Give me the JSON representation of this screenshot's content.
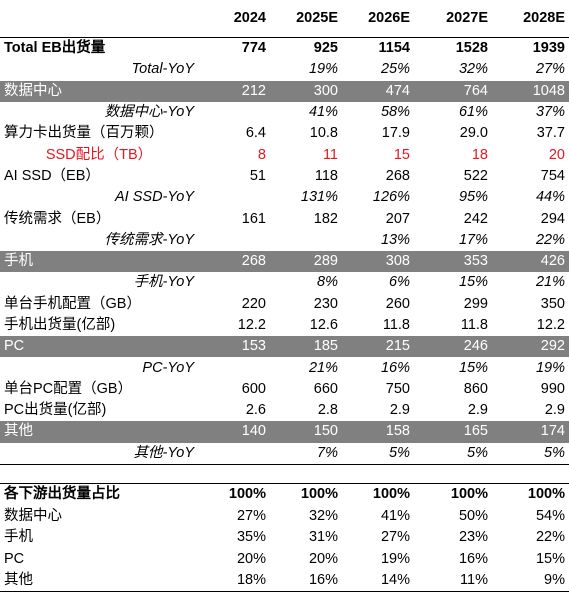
{
  "columns": [
    "",
    "2024",
    "2025E",
    "2026E",
    "2027E",
    "2028E"
  ],
  "rows": [
    {
      "style": "bold topline",
      "label": "Total EB出货量",
      "values": [
        "774",
        "925",
        "1154",
        "1528",
        "1939"
      ]
    },
    {
      "style": "yoy",
      "label": "Total-YoY",
      "values": [
        "",
        "19%",
        "25%",
        "32%",
        "27%"
      ]
    },
    {
      "style": "grey",
      "label": "数据中心",
      "values": [
        "212",
        "300",
        "474",
        "764",
        "1048"
      ]
    },
    {
      "style": "yoy",
      "label": "数据中心-YoY",
      "values": [
        "",
        "41%",
        "58%",
        "61%",
        "37%"
      ]
    },
    {
      "style": "",
      "label": "算力卡出货量（百万颗）",
      "values": [
        "6.4",
        "10.8",
        "17.9",
        "29.0",
        "37.7"
      ]
    },
    {
      "style": "red",
      "label": "SSD配比（TB）",
      "values": [
        "8",
        "11",
        "15",
        "18",
        "20"
      ]
    },
    {
      "style": "",
      "label": "AI SSD（EB）",
      "values": [
        "51",
        "118",
        "268",
        "522",
        "754"
      ]
    },
    {
      "style": "yoy",
      "label": "AI SSD-YoY",
      "values": [
        "",
        "131%",
        "126%",
        "95%",
        "44%"
      ]
    },
    {
      "style": "",
      "label": "传统需求（EB）",
      "values": [
        "161",
        "182",
        "207",
        "242",
        "294"
      ]
    },
    {
      "style": "yoy",
      "label": "传统需求-YoY",
      "values": [
        "",
        "",
        "13%",
        "17%",
        "22%"
      ]
    },
    {
      "style": "grey",
      "label": "手机",
      "values": [
        "268",
        "289",
        "308",
        "353",
        "426"
      ]
    },
    {
      "style": "yoy",
      "label": "手机-YoY",
      "values": [
        "",
        "8%",
        "6%",
        "15%",
        "21%"
      ]
    },
    {
      "style": "",
      "label": "单台手机配置（GB）",
      "values": [
        "220",
        "230",
        "260",
        "299",
        "350"
      ]
    },
    {
      "style": "",
      "label": "手机出货量(亿部)",
      "values": [
        "12.2",
        "12.6",
        "11.8",
        "11.8",
        "12.2"
      ]
    },
    {
      "style": "grey",
      "label": "PC",
      "values": [
        "153",
        "185",
        "215",
        "246",
        "292"
      ]
    },
    {
      "style": "yoy",
      "label": "PC-YoY",
      "values": [
        "",
        "21%",
        "16%",
        "15%",
        "19%"
      ]
    },
    {
      "style": "",
      "label": "单台PC配置（GB）",
      "values": [
        "600",
        "660",
        "750",
        "860",
        "990"
      ]
    },
    {
      "style": "",
      "label": "PC出货量(亿部)",
      "values": [
        "2.6",
        "2.8",
        "2.9",
        "2.9",
        "2.9"
      ]
    },
    {
      "style": "grey",
      "label": "其他",
      "values": [
        "140",
        "150",
        "158",
        "165",
        "174"
      ]
    },
    {
      "style": "yoy lastmain",
      "label": "其他-YoY",
      "values": [
        "",
        "7%",
        "5%",
        "5%",
        "5%"
      ]
    }
  ],
  "share": {
    "header": {
      "label": "各下游出货量占比",
      "values": [
        "100%",
        "100%",
        "100%",
        "100%",
        "100%"
      ]
    },
    "rows": [
      {
        "label": "数据中心",
        "values": [
          "27%",
          "32%",
          "41%",
          "50%",
          "54%"
        ]
      },
      {
        "label": "手机",
        "values": [
          "35%",
          "31%",
          "27%",
          "23%",
          "22%"
        ]
      },
      {
        "label": "PC",
        "values": [
          "20%",
          "20%",
          "19%",
          "16%",
          "15%"
        ]
      },
      {
        "label": "其他",
        "values": [
          "18%",
          "16%",
          "14%",
          "11%",
          "9%"
        ]
      }
    ]
  }
}
